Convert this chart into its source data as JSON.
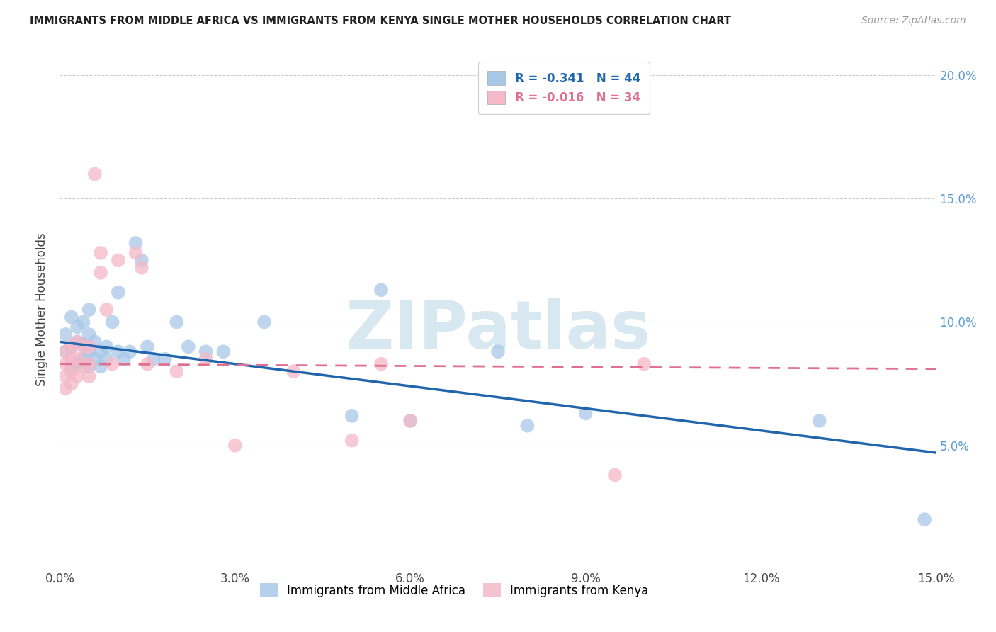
{
  "title": "IMMIGRANTS FROM MIDDLE AFRICA VS IMMIGRANTS FROM KENYA SINGLE MOTHER HOUSEHOLDS CORRELATION CHART",
  "source": "Source: ZipAtlas.com",
  "xlabel_blue": "Immigrants from Middle Africa",
  "xlabel_pink": "Immigrants from Kenya",
  "ylabel": "Single Mother Households",
  "r_blue": -0.341,
  "n_blue": 44,
  "r_pink": -0.016,
  "n_pink": 34,
  "xlim": [
    0.0,
    0.15
  ],
  "ylim": [
    0.0,
    0.21
  ],
  "xticks": [
    0.0,
    0.03,
    0.06,
    0.09,
    0.12,
    0.15
  ],
  "yticks": [
    0.05,
    0.1,
    0.15,
    0.2
  ],
  "blue_color": "#a8c8e8",
  "blue_line_color": "#2166ac",
  "pink_color": "#f4b8c8",
  "pink_line_color": "#e07090",
  "watermark_color": "#d8e8f0",
  "watermark": "ZIPatlas",
  "blue_scatter_x": [
    0.001,
    0.001,
    0.002,
    0.002,
    0.002,
    0.003,
    0.003,
    0.003,
    0.004,
    0.004,
    0.004,
    0.005,
    0.005,
    0.005,
    0.005,
    0.006,
    0.006,
    0.007,
    0.007,
    0.008,
    0.008,
    0.009,
    0.01,
    0.01,
    0.011,
    0.012,
    0.013,
    0.014,
    0.015,
    0.016,
    0.018,
    0.02,
    0.022,
    0.025,
    0.028,
    0.035,
    0.05,
    0.055,
    0.06,
    0.075,
    0.08,
    0.09,
    0.13,
    0.148
  ],
  "blue_scatter_y": [
    0.095,
    0.088,
    0.102,
    0.09,
    0.082,
    0.098,
    0.092,
    0.083,
    0.1,
    0.091,
    0.085,
    0.105,
    0.095,
    0.088,
    0.082,
    0.092,
    0.085,
    0.088,
    0.082,
    0.09,
    0.085,
    0.1,
    0.112,
    0.088,
    0.085,
    0.088,
    0.132,
    0.125,
    0.09,
    0.085,
    0.085,
    0.1,
    0.09,
    0.088,
    0.088,
    0.1,
    0.062,
    0.113,
    0.06,
    0.088,
    0.058,
    0.063,
    0.06,
    0.02
  ],
  "pink_scatter_x": [
    0.001,
    0.001,
    0.001,
    0.001,
    0.002,
    0.002,
    0.002,
    0.002,
    0.003,
    0.003,
    0.003,
    0.004,
    0.004,
    0.005,
    0.005,
    0.005,
    0.006,
    0.007,
    0.007,
    0.008,
    0.009,
    0.01,
    0.013,
    0.014,
    0.015,
    0.02,
    0.025,
    0.03,
    0.04,
    0.05,
    0.055,
    0.06,
    0.095,
    0.1
  ],
  "pink_scatter_y": [
    0.088,
    0.083,
    0.078,
    0.073,
    0.09,
    0.085,
    0.08,
    0.075,
    0.092,
    0.085,
    0.078,
    0.09,
    0.082,
    0.09,
    0.083,
    0.078,
    0.16,
    0.128,
    0.12,
    0.105,
    0.083,
    0.125,
    0.128,
    0.122,
    0.083,
    0.08,
    0.085,
    0.05,
    0.08,
    0.052,
    0.083,
    0.06,
    0.038,
    0.083
  ],
  "blue_line_x0": 0.0,
  "blue_line_y0": 0.092,
  "blue_line_x1": 0.15,
  "blue_line_y1": 0.047,
  "pink_line_x0": 0.0,
  "pink_line_y0": 0.083,
  "pink_line_x1": 0.15,
  "pink_line_y1": 0.081
}
